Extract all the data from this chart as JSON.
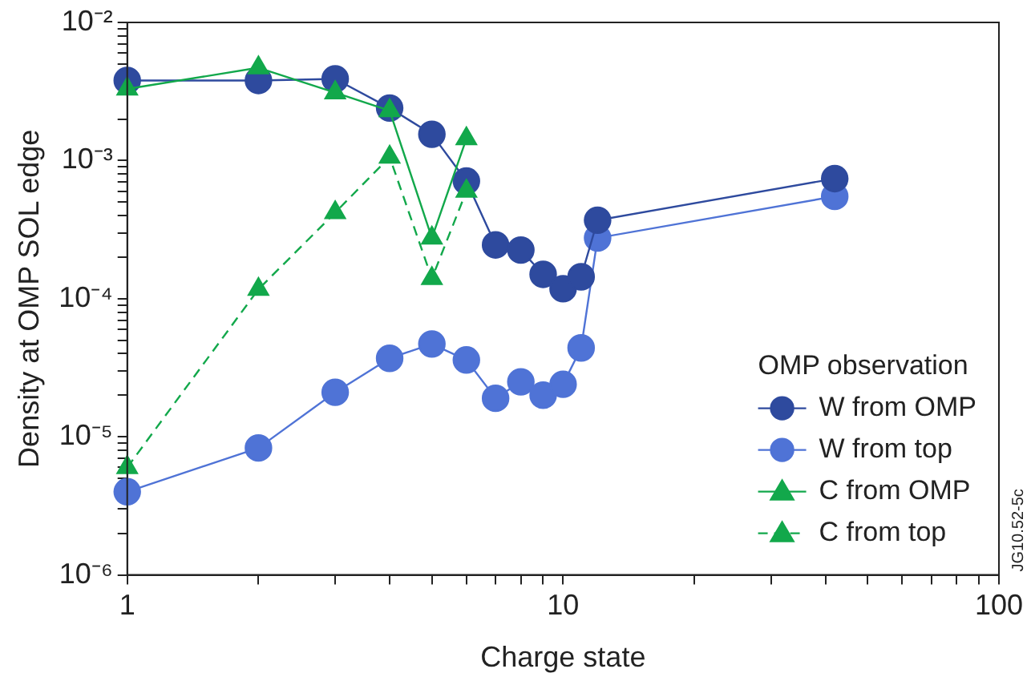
{
  "chart_data": {
    "type": "line",
    "xlabel": "Charge state",
    "ylabel": "Density at OMP SOL edge",
    "legend_title": "OMP observation",
    "legend": "bottom right",
    "log": "xy",
    "grid": false,
    "xlim": [
      1,
      100
    ],
    "ylim": [
      1e-06,
      0.01
    ],
    "xticks": [
      1,
      {
        "value": 2,
        "label": null
      },
      {
        "value": 3,
        "label": null
      },
      {
        "value": 4,
        "label": null
      },
      {
        "value": 5,
        "label": null
      },
      {
        "value": 6,
        "label": null
      },
      {
        "value": 7,
        "label": null
      },
      {
        "value": 8,
        "label": null
      },
      {
        "value": 9,
        "label": null
      },
      10,
      {
        "value": 20,
        "label": null
      },
      {
        "value": 30,
        "label": null
      },
      {
        "value": 40,
        "label": null
      },
      {
        "value": 50,
        "label": null
      },
      {
        "value": 60,
        "label": null
      },
      {
        "value": 70,
        "label": null
      },
      {
        "value": 80,
        "label": null
      },
      {
        "value": 90,
        "label": null
      },
      100
    ],
    "yticks": [
      {
        "value": 1e-06,
        "label": "10⁻⁶"
      },
      {
        "value": 2e-06,
        "label": null
      },
      {
        "value": 3e-06,
        "label": null
      },
      {
        "value": 4e-06,
        "label": null
      },
      {
        "value": 5e-06,
        "label": null
      },
      {
        "value": 6e-06,
        "label": null
      },
      {
        "value": 7e-06,
        "label": null
      },
      {
        "value": 8e-06,
        "label": null
      },
      {
        "value": 9e-06,
        "label": null
      },
      {
        "value": 1e-05,
        "label": "10⁻⁵"
      },
      {
        "value": 2e-05,
        "label": null
      },
      {
        "value": 3e-05,
        "label": null
      },
      {
        "value": 4e-05,
        "label": null
      },
      {
        "value": 5e-05,
        "label": null
      },
      {
        "value": 6e-05,
        "label": null
      },
      {
        "value": 7e-05,
        "label": null
      },
      {
        "value": 8e-05,
        "label": null
      },
      {
        "value": 9e-05,
        "label": null
      },
      {
        "value": 0.0001,
        "label": "10⁻⁴"
      },
      {
        "value": 0.0002,
        "label": null
      },
      {
        "value": 0.0003,
        "label": null
      },
      {
        "value": 0.0004,
        "label": null
      },
      {
        "value": 0.0005,
        "label": null
      },
      {
        "value": 0.0006,
        "label": null
      },
      {
        "value": 0.0007,
        "label": null
      },
      {
        "value": 0.0008,
        "label": null
      },
      {
        "value": 0.0009,
        "label": null
      },
      {
        "value": 0.001,
        "label": "10⁻³"
      },
      {
        "value": 0.002,
        "label": null
      },
      {
        "value": 0.003,
        "label": null
      },
      {
        "value": 0.004,
        "label": null
      },
      {
        "value": 0.005,
        "label": null
      },
      {
        "value": 0.006,
        "label": null
      },
      {
        "value": 0.007,
        "label": null
      },
      {
        "value": 0.008,
        "label": null
      },
      {
        "value": 0.009,
        "label": null
      },
      {
        "value": 0.01,
        "label": "10⁻²"
      }
    ],
    "annotations": [
      "JG10.52-5c"
    ],
    "series": [
      {
        "name": "W from OMP",
        "color": "#2e4a9e",
        "marker": "circle",
        "line_style": "solid",
        "x": [
          1,
          2,
          3,
          4,
          5,
          6,
          7,
          8,
          9,
          10,
          11,
          12,
          42
        ],
        "values": [
          0.0038,
          0.0038,
          0.0039,
          0.0024,
          0.00155,
          0.00071,
          0.000245,
          0.000225,
          0.00015,
          0.000118,
          0.000144,
          0.00037,
          0.00074
        ]
      },
      {
        "name": "W from top",
        "color": "#4f73d6",
        "marker": "circle",
        "line_style": "solid",
        "x": [
          1,
          2,
          3,
          4,
          5,
          6,
          7,
          8,
          9,
          10,
          11,
          12,
          42
        ],
        "values": [
          4e-06,
          8.3e-06,
          2.1e-05,
          3.7e-05,
          4.7e-05,
          3.6e-05,
          1.9e-05,
          2.5e-05,
          2e-05,
          2.4e-05,
          4.4e-05,
          0.000275,
          0.00055
        ]
      },
      {
        "name": "C from OMP",
        "color": "#12a84b",
        "marker": "triangle",
        "line_style": "solid",
        "x": [
          1,
          2,
          3,
          4,
          5,
          6
        ],
        "values": [
          0.0033,
          0.0047,
          0.0031,
          0.0023,
          0.000275,
          0.00144
        ]
      },
      {
        "name": "C from top",
        "color": "#12a84b",
        "marker": "triangle",
        "line_style": "dashed",
        "x": [
          1,
          2,
          3,
          4,
          5,
          6
        ],
        "values": [
          6e-06,
          0.000117,
          0.00042,
          0.00106,
          0.00014,
          0.0006
        ]
      }
    ]
  }
}
